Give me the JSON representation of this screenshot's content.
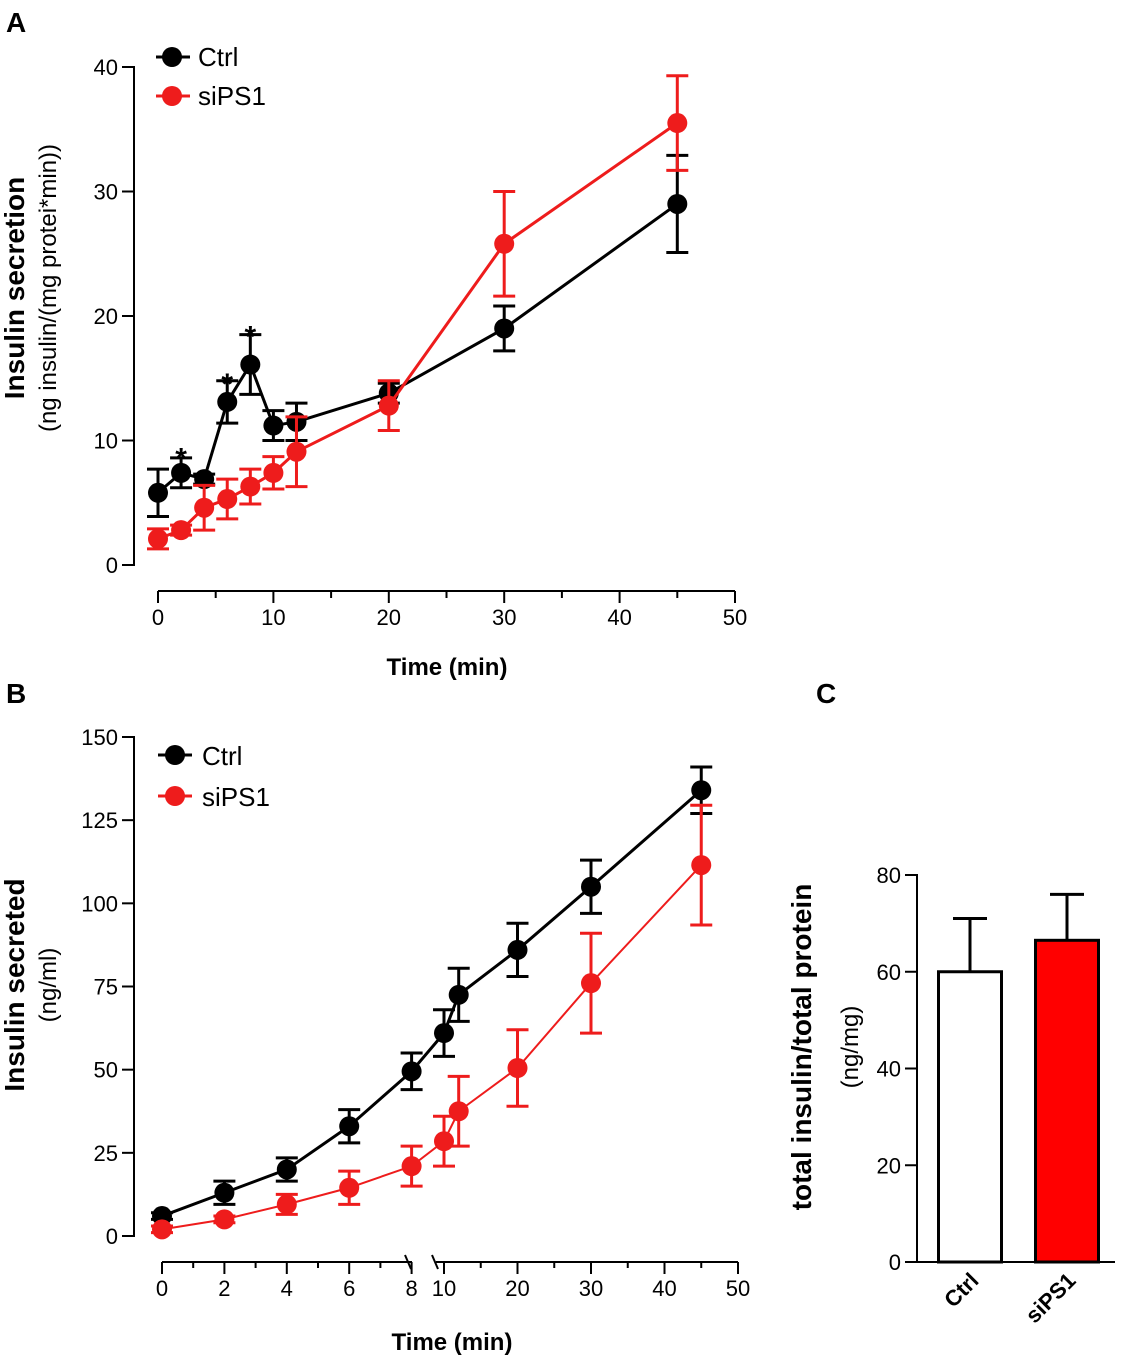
{
  "panels": {
    "A": "A",
    "B": "B",
    "C": "C"
  },
  "colors": {
    "ctrl": "#000000",
    "sips1": "#ee1c1c",
    "bar_ctrl": "#ffffff",
    "bar_sips1": "#ff0000"
  },
  "chart_data": [
    {
      "id": "A",
      "type": "line",
      "xlabel": "Time (min)",
      "ylabel": "Insulin secretion",
      "ylabel_unit": "(ng insulin/(mg protei*min))",
      "xlim": [
        0,
        50
      ],
      "ylim": [
        0,
        40
      ],
      "xticks": [
        0,
        10,
        20,
        30,
        40,
        50
      ],
      "yticks": [
        0,
        10,
        20,
        30,
        40
      ],
      "legend_position": "top-left",
      "series": [
        {
          "name": "Ctrl",
          "color": "#000000",
          "x": [
            0,
            2,
            4,
            6,
            8,
            10,
            12,
            20,
            30,
            45
          ],
          "y": [
            5.8,
            7.4,
            6.9,
            13.1,
            16.1,
            11.2,
            11.5,
            13.8,
            19.0,
            29.0
          ],
          "err": [
            1.9,
            1.2,
            0.4,
            1.7,
            2.4,
            1.2,
            1.5,
            0.8,
            1.8,
            3.9
          ]
        },
        {
          "name": "siPS1",
          "color": "#ee1c1c",
          "x": [
            0,
            2,
            4,
            6,
            8,
            10,
            12,
            20,
            30,
            45
          ],
          "y": [
            2.1,
            2.8,
            4.6,
            5.3,
            6.3,
            7.4,
            9.1,
            12.8,
            25.8,
            35.5
          ],
          "err": [
            0.8,
            0.4,
            1.8,
            1.6,
            1.4,
            1.3,
            2.8,
            2.0,
            4.2,
            3.8
          ]
        }
      ],
      "annotations": [
        {
          "text": "*",
          "x": 2,
          "y": 9.2
        },
        {
          "text": "*",
          "x": 6,
          "y": 15.2
        },
        {
          "text": "*",
          "x": 8,
          "y": 19.0
        }
      ]
    },
    {
      "id": "B",
      "type": "line",
      "xlabel": "Time (min)",
      "ylabel": "Insulin secreted",
      "ylabel_unit": "(ng/ml)",
      "ylim": [
        0,
        150
      ],
      "yticks": [
        0,
        25,
        50,
        75,
        100,
        125,
        150
      ],
      "xticks": [
        0,
        2,
        4,
        6,
        8,
        10,
        20,
        30,
        40,
        50
      ],
      "axis_break": "between 8 and 10",
      "legend_position": "top-left",
      "series": [
        {
          "name": "Ctrl",
          "color": "#000000",
          "x": [
            0,
            2,
            4,
            6,
            8,
            10,
            12,
            20,
            30,
            45
          ],
          "y": [
            6,
            13,
            20,
            33,
            49.5,
            61,
            72.5,
            86,
            105,
            134
          ],
          "err": [
            1,
            3.5,
            3.5,
            5,
            5.5,
            7,
            8,
            8,
            8,
            7
          ]
        },
        {
          "name": "siPS1",
          "color": "#ee1c1c",
          "x": [
            0,
            2,
            4,
            6,
            8,
            10,
            12,
            20,
            30,
            45
          ],
          "y": [
            2,
            5,
            9.5,
            14.5,
            21,
            28.5,
            37.5,
            50.5,
            76,
            111.5
          ],
          "err": [
            1,
            1,
            3,
            5,
            6,
            7.5,
            10.5,
            11.5,
            15,
            18
          ]
        }
      ]
    },
    {
      "id": "C",
      "type": "bar",
      "ylabel": "total insulin/total protein",
      "ylabel_unit": "(ng/mg)",
      "ylim": [
        0,
        80
      ],
      "yticks": [
        0,
        20,
        40,
        60,
        80
      ],
      "categories": [
        "Ctrl",
        "siPS1"
      ],
      "values": [
        60,
        66.5
      ],
      "err": [
        11,
        9.5
      ]
    }
  ]
}
